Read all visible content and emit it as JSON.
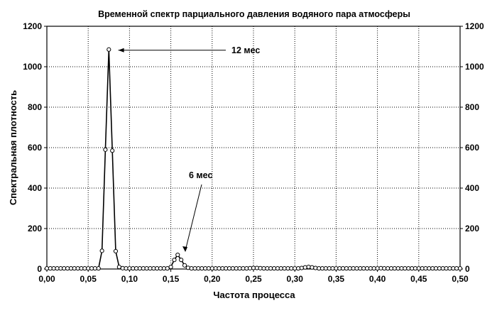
{
  "chart_data": {
    "type": "line",
    "title": "Временной спектр парциального давления водяного пара атмосферы",
    "xlabel": "Частота процесса",
    "ylabel": "Спектральная плотность",
    "xlim": [
      0.0,
      0.5
    ],
    "ylim": [
      0,
      1200
    ],
    "x_ticks": [
      "0,00",
      "0,05",
      "0,10",
      "0,15",
      "0,20",
      "0,25",
      "0,30",
      "0,35",
      "0,40",
      "0,45",
      "0,50"
    ],
    "y_ticks": [
      "0",
      "200",
      "400",
      "600",
      "800",
      "1000",
      "1200"
    ],
    "y_ticks_right": [
      "0",
      "200",
      "400",
      "600",
      "800",
      "1000",
      "1200"
    ],
    "grid": true,
    "series": [
      {
        "x": [
          0.0,
          0.0042,
          0.0083,
          0.0125,
          0.0167,
          0.0208,
          0.025,
          0.0292,
          0.0333,
          0.0375,
          0.0417,
          0.0458,
          0.05,
          0.0542,
          0.0583,
          0.0625,
          0.0667,
          0.0708,
          0.075,
          0.0792,
          0.0833,
          0.0875,
          0.0917,
          0.0958,
          0.1,
          0.1042,
          0.1083,
          0.1125,
          0.1167,
          0.1208,
          0.125,
          0.1292,
          0.1333,
          0.1375,
          0.1417,
          0.1458,
          0.15,
          0.1542,
          0.1583,
          0.1625,
          0.1667,
          0.1708,
          0.175,
          0.1792,
          0.1833,
          0.1875,
          0.1917,
          0.1958,
          0.2,
          0.2042,
          0.2083,
          0.2125,
          0.2167,
          0.2208,
          0.225,
          0.2292,
          0.2333,
          0.2375,
          0.2417,
          0.2458,
          0.25,
          0.2542,
          0.2583,
          0.2625,
          0.2667,
          0.2708,
          0.275,
          0.2792,
          0.2833,
          0.2875,
          0.2917,
          0.2958,
          0.3,
          0.3042,
          0.3083,
          0.3125,
          0.3167,
          0.3208,
          0.325,
          0.3292,
          0.3333,
          0.3375,
          0.3417,
          0.3458,
          0.35,
          0.3542,
          0.3583,
          0.3625,
          0.3667,
          0.3708,
          0.375,
          0.3792,
          0.3833,
          0.3875,
          0.3917,
          0.3958,
          0.4,
          0.4042,
          0.4083,
          0.4125,
          0.4167,
          0.4208,
          0.425,
          0.4292,
          0.4333,
          0.4375,
          0.4417,
          0.4458,
          0.45,
          0.4542,
          0.4583,
          0.4625,
          0.4667,
          0.4708,
          0.475,
          0.4792,
          0.4833,
          0.4875,
          0.4917,
          0.4958,
          0.5
        ],
        "y": [
          3,
          3,
          3,
          3,
          3,
          3,
          3,
          3,
          3,
          3,
          3,
          3,
          3,
          3,
          3,
          3,
          90,
          590,
          1085,
          585,
          88,
          10,
          4,
          3,
          3,
          3,
          3,
          3,
          3,
          3,
          3,
          3,
          3,
          3,
          3,
          3,
          10,
          45,
          70,
          45,
          18,
          6,
          3,
          3,
          3,
          3,
          3,
          3,
          3,
          3,
          3,
          3,
          3,
          3,
          3,
          3,
          3,
          3,
          3,
          4,
          5,
          5,
          4,
          3,
          3,
          3,
          3,
          3,
          3,
          3,
          3,
          3,
          3,
          3,
          5,
          8,
          10,
          8,
          5,
          3,
          3,
          3,
          3,
          3,
          3,
          3,
          3,
          3,
          3,
          3,
          3,
          3,
          3,
          3,
          3,
          3,
          3,
          4,
          3,
          3,
          3,
          3,
          3,
          3,
          3,
          3,
          3,
          3,
          3,
          3,
          3,
          3,
          3,
          3,
          3,
          3,
          3,
          3,
          3,
          3,
          3
        ]
      }
    ],
    "annotations": [
      {
        "text": "12 мес",
        "x": 0.083,
        "y": 1085
      },
      {
        "text": "6 мес",
        "x": 0.1667,
        "y": 70
      }
    ]
  }
}
